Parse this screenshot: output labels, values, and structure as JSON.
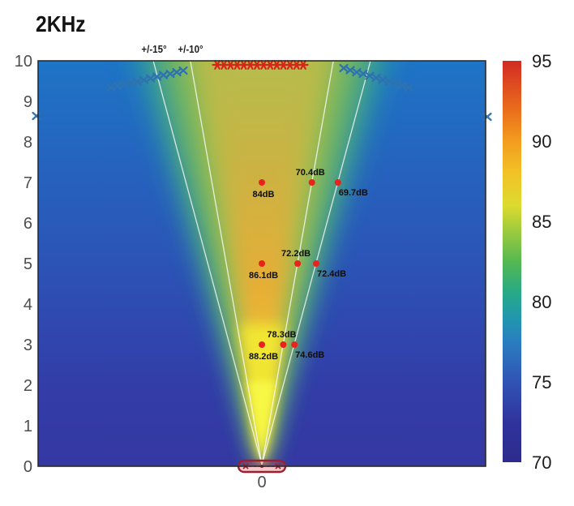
{
  "title": "2KHz",
  "colors": {
    "marker_red": "#d6261c",
    "dot_red": "#e8231c",
    "marker_blue": "#2e72b0",
    "tick_gray": "#4d4d4d",
    "label_black": "#101010",
    "guide_white": "rgba(255,255,255,0.78)",
    "source_red": "#9c1f2e",
    "colorbar_top": "#d22b23",
    "colorbar_bottom": "#2d2b8d"
  },
  "chart_data": {
    "type": "heatmap",
    "title": "2KHz",
    "xlabel": "",
    "ylabel": "",
    "x_ticks": [
      "0"
    ],
    "y_ticks": [
      10,
      9,
      8,
      7,
      6,
      5,
      4,
      3,
      2,
      1,
      0
    ],
    "ylim": [
      0,
      10
    ],
    "grid": false,
    "colorbar": {
      "min": 70,
      "max": 95,
      "ticks": [
        95,
        90,
        85,
        80,
        75,
        70
      ],
      "position": "right"
    },
    "angle_guides": [
      {
        "label": "+/-15°",
        "deg": 15
      },
      {
        "label": "+/-10°",
        "deg": 10
      }
    ],
    "spl_points": [
      {
        "u": 0,
        "v": 7,
        "angle_deg": 0,
        "value": "84dB",
        "label_pos": "below"
      },
      {
        "u": 1.234,
        "v": 7,
        "angle_deg": 10,
        "value": "70.4dB",
        "label_pos": "above"
      },
      {
        "u": 1.876,
        "v": 7,
        "angle_deg": 15,
        "value": "69.7dB",
        "label_pos": "below-right"
      },
      {
        "u": 0,
        "v": 5,
        "angle_deg": 0,
        "value": "86.1dB",
        "label_pos": "below"
      },
      {
        "u": 0.882,
        "v": 5,
        "angle_deg": 10,
        "value": "72.2dB",
        "label_pos": "above"
      },
      {
        "u": 1.34,
        "v": 5,
        "angle_deg": 15,
        "value": "72.4dB",
        "label_pos": "below-right"
      },
      {
        "u": 0,
        "v": 3,
        "angle_deg": 0,
        "value": "88.2dB",
        "label_pos": "below"
      },
      {
        "u": 0.529,
        "v": 3,
        "angle_deg": 10,
        "value": "78.3dB",
        "label_pos": "above"
      },
      {
        "u": 0.804,
        "v": 3,
        "angle_deg": 15,
        "value": "74.6dB",
        "label_pos": "below-right"
      }
    ],
    "asterisk_row": {
      "v": 9.9,
      "u_start": -1.1,
      "u_step": 0.1631,
      "count": 14
    },
    "x_marker_chains": {
      "left": [
        [
          -3.72,
          9.34
        ],
        [
          -3.56,
          9.38
        ],
        [
          -3.4,
          9.42
        ],
        [
          -3.24,
          9.45
        ],
        [
          -3.07,
          9.49
        ],
        [
          -2.91,
          9.53
        ],
        [
          -2.75,
          9.57
        ],
        [
          -2.59,
          9.61
        ],
        [
          -2.43,
          9.65
        ],
        [
          -2.26,
          9.68
        ],
        [
          -2.1,
          9.72
        ],
        [
          -1.94,
          9.76
        ]
      ],
      "right": [
        [
          2.02,
          9.82
        ],
        [
          2.18,
          9.77
        ],
        [
          2.34,
          9.72
        ],
        [
          2.5,
          9.68
        ],
        [
          2.66,
          9.63
        ],
        [
          2.82,
          9.58
        ],
        [
          2.98,
          9.53
        ],
        [
          3.14,
          9.49
        ],
        [
          3.3,
          9.44
        ],
        [
          3.46,
          9.39
        ],
        [
          3.62,
          9.34
        ]
      ],
      "singles": [
        [
          -5.56,
          8.64
        ],
        [
          5.56,
          8.62
        ]
      ]
    },
    "source_glyph": {
      "u": 0,
      "v": 0
    }
  }
}
